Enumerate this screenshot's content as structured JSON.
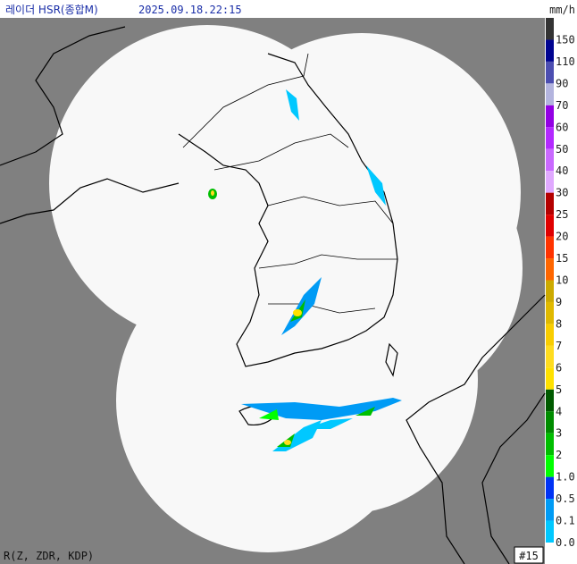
{
  "header": {
    "title": "레이더 HSR(종합M)",
    "timestamp": "2025.09.18.22:15",
    "unit": "mm/h"
  },
  "legend": {
    "items": [
      {
        "label": "150",
        "color": "#333333"
      },
      {
        "label": "110",
        "color": "#000390"
      },
      {
        "label": "90",
        "color": "#4c4eb1"
      },
      {
        "label": "70",
        "color": "#b3b4de"
      },
      {
        "label": "60",
        "color": "#9300e4"
      },
      {
        "label": "50",
        "color": "#b329ff"
      },
      {
        "label": "40",
        "color": "#c969ff"
      },
      {
        "label": "30",
        "color": "#e0a9ff"
      },
      {
        "label": "25",
        "color": "#b40000"
      },
      {
        "label": "20",
        "color": "#e00000"
      },
      {
        "label": "15",
        "color": "#ff3300"
      },
      {
        "label": "10",
        "color": "#ff6600"
      },
      {
        "label": "9",
        "color": "#ccaa00"
      },
      {
        "label": "8",
        "color": "#e0b900"
      },
      {
        "label": "7",
        "color": "#f9cd00"
      },
      {
        "label": "6",
        "color": "#ffdc1f"
      },
      {
        "label": "5",
        "color": "#ffe100"
      },
      {
        "label": "4",
        "color": "#005a00"
      },
      {
        "label": "3",
        "color": "#008c00"
      },
      {
        "label": "2",
        "color": "#00be00"
      },
      {
        "label": "1.0",
        "color": "#00ff00"
      },
      {
        "label": "0.5",
        "color": "#0033f5"
      },
      {
        "label": "0.1",
        "color": "#009bf5"
      },
      {
        "label": "0.0",
        "color": "#00c8ff"
      }
    ]
  },
  "footer": {
    "method": "R(Z, ZDR, KDP)",
    "frame": "#15"
  }
}
